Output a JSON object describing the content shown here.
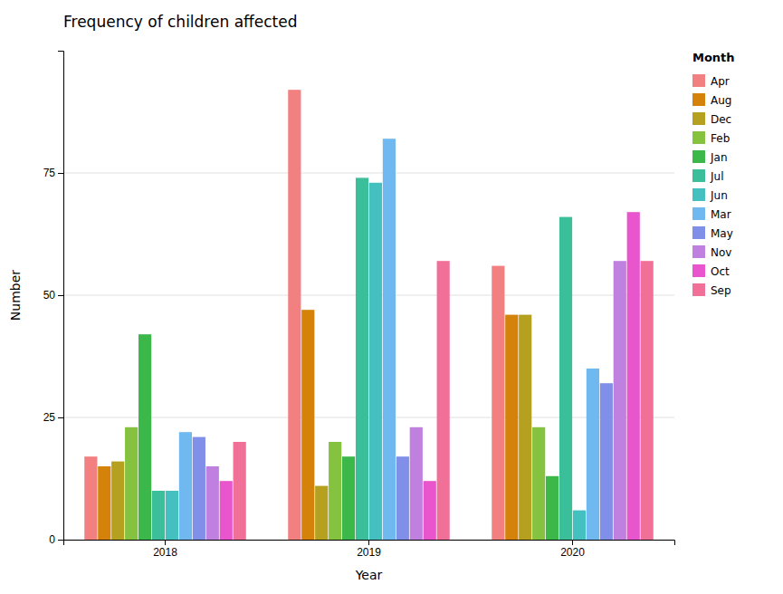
{
  "chart_data": {
    "type": "bar",
    "title": "Frequency of children affected",
    "xlabel": "Year",
    "ylabel": "Number",
    "legend_title": "Month",
    "categories": [
      "2018",
      "2019",
      "2020"
    ],
    "series": [
      {
        "name": "Apr",
        "color": "#f28080",
        "values": [
          17,
          92,
          56
        ]
      },
      {
        "name": "Aug",
        "color": "#d4820a",
        "values": [
          15,
          47,
          46
        ]
      },
      {
        "name": "Dec",
        "color": "#b5a020",
        "values": [
          16,
          11,
          46
        ]
      },
      {
        "name": "Feb",
        "color": "#85c240",
        "values": [
          23,
          20,
          23
        ]
      },
      {
        "name": "Jan",
        "color": "#3cb84a",
        "values": [
          42,
          17,
          13
        ]
      },
      {
        "name": "Jul",
        "color": "#3bbf9a",
        "values": [
          10,
          74,
          66
        ]
      },
      {
        "name": "Jun",
        "color": "#45c0c0",
        "values": [
          10,
          73,
          6
        ]
      },
      {
        "name": "Mar",
        "color": "#70b8f0",
        "values": [
          22,
          82,
          35
        ]
      },
      {
        "name": "May",
        "color": "#8090e8",
        "values": [
          21,
          17,
          32
        ]
      },
      {
        "name": "Nov",
        "color": "#c080e0",
        "values": [
          15,
          23,
          57
        ]
      },
      {
        "name": "Oct",
        "color": "#e855cc",
        "values": [
          12,
          12,
          67
        ]
      },
      {
        "name": "Sep",
        "color": "#f07098",
        "values": [
          20,
          57,
          57
        ]
      }
    ],
    "ylim": [
      0,
      100
    ],
    "yticks": [
      0,
      25,
      50,
      75
    ],
    "grid": true,
    "legend": "right"
  }
}
